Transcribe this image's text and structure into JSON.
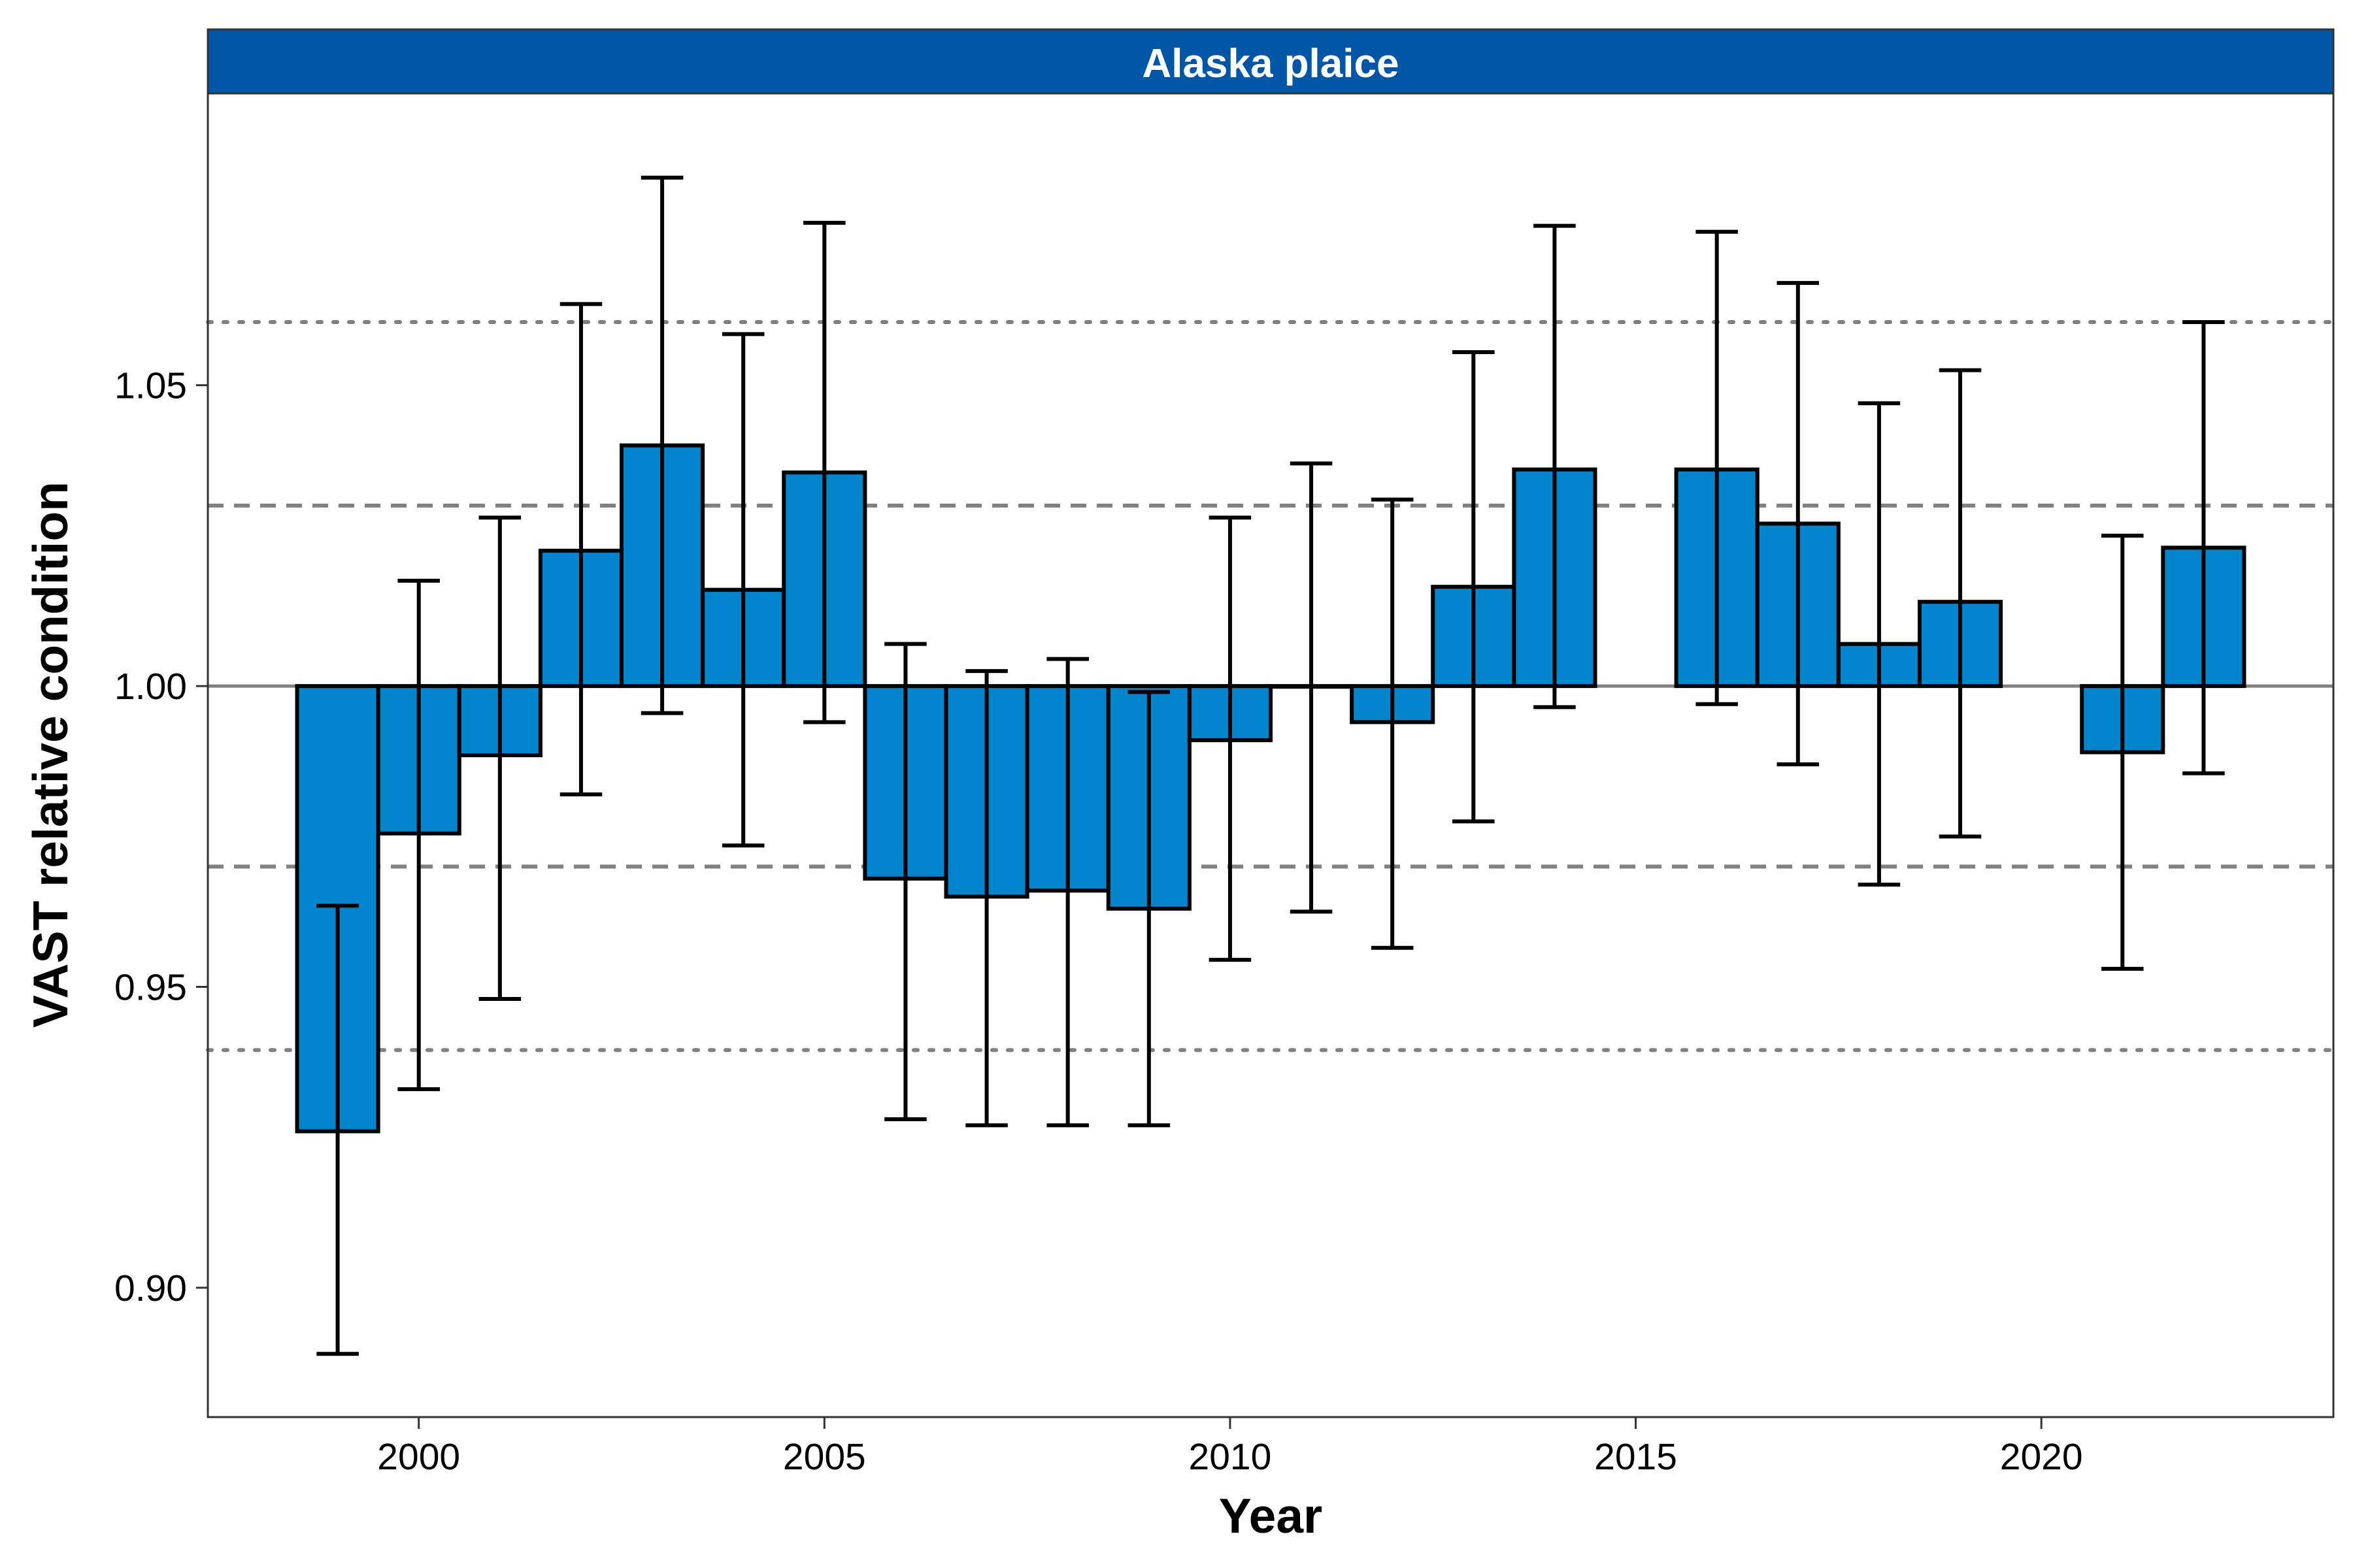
{
  "chart_data": {
    "type": "bar",
    "title": "Alaska plaice",
    "xlabel": "Year",
    "ylabel": "VAST relative condition",
    "xlim": [
      1997.4,
      2023.6
    ],
    "ylim": [
      0.8785,
      1.0985
    ],
    "baseline": 1.0,
    "x_ticks": [
      2000,
      2005,
      2010,
      2015,
      2020
    ],
    "y_ticks": [
      0.9,
      0.95,
      1.0,
      1.05
    ],
    "y_tick_labels": [
      "0.90",
      "0.95",
      "1.00",
      "1.05"
    ],
    "reference_lines": [
      {
        "value": 1.0,
        "style": "solid"
      },
      {
        "value": 1.03,
        "style": "dashed"
      },
      {
        "value": 0.97,
        "style": "dashed"
      },
      {
        "value": 1.0605,
        "style": "dotted"
      },
      {
        "value": 0.9395,
        "style": "dotted"
      }
    ],
    "grid": false,
    "legend": "none",
    "colors": {
      "bar_fill": "#0285CC",
      "bar_stroke": "#000000",
      "strip_fill": "#0056A6",
      "strip_text": "#FFFFFF",
      "reference_line": "#808080",
      "error_bar": "#000000"
    },
    "series": [
      {
        "years": [
          1999,
          2000,
          2001,
          2002,
          2003,
          2004,
          2005,
          2006,
          2007,
          2008,
          2009,
          2010,
          2011,
          2012,
          2013,
          2014,
          2016,
          2017,
          2018,
          2019,
          2021,
          2022
        ],
        "values": [
          0.926,
          0.9755,
          0.9885,
          1.0225,
          1.04,
          1.016,
          1.0355,
          0.968,
          0.965,
          0.966,
          0.963,
          0.991,
          1.0,
          0.994,
          1.0165,
          1.036,
          1.036,
          1.027,
          1.007,
          1.014,
          0.989,
          1.023
        ],
        "lower": [
          0.889,
          0.933,
          0.948,
          0.982,
          0.9955,
          0.9735,
          0.994,
          0.928,
          0.927,
          0.927,
          0.927,
          0.9545,
          0.9625,
          0.9565,
          0.9775,
          0.9965,
          0.997,
          0.987,
          0.967,
          0.975,
          0.953,
          0.9855
        ],
        "upper": [
          0.9635,
          1.0175,
          1.028,
          1.0635,
          1.0845,
          1.0585,
          1.077,
          1.007,
          1.0025,
          1.0045,
          0.999,
          1.028,
          1.037,
          1.031,
          1.0555,
          1.0765,
          1.0755,
          1.067,
          1.047,
          1.0525,
          1.025,
          1.0605
        ]
      }
    ]
  }
}
